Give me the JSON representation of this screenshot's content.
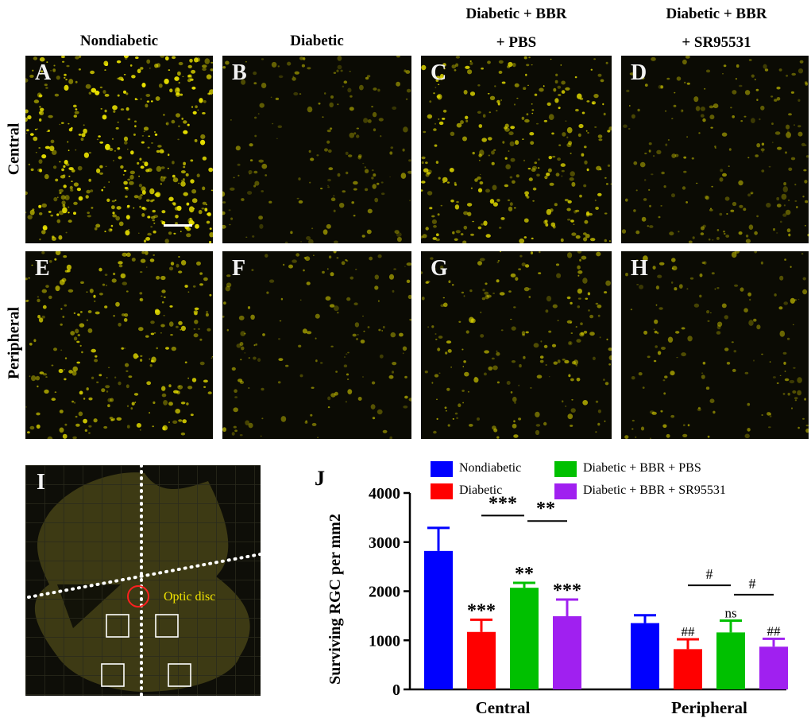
{
  "columns": {
    "c1": [
      "Nondiabetic"
    ],
    "c2": [
      "Diabetic"
    ],
    "c3": [
      "Diabetic + BBR",
      "+ PBS"
    ],
    "c4": [
      "Diabetic + BBR",
      "+ SR95531"
    ]
  },
  "rows": {
    "r1": "Central",
    "r2": "Peripheral"
  },
  "panels": {
    "A": "A",
    "B": "B",
    "C": "C",
    "D": "D",
    "E": "E",
    "F": "F",
    "G": "G",
    "H": "H",
    "I": "I",
    "J": "J"
  },
  "panelI": {
    "label": "Optic disc"
  },
  "colors": {
    "Nondiabetic": "#0000ff",
    "Diabetic": "#ff0000",
    "Diabetic + BBR + PBS": "#00c000",
    "Diabetic + BBR + SR95531": "#a020f0",
    "fluorescence": "#e8e000"
  },
  "chart_data": {
    "type": "bar",
    "ylabel": "Surviving RGC per mm2",
    "categories": [
      "Central",
      "Peripheral"
    ],
    "ylim": [
      0,
      4000
    ],
    "yticks": [
      "0",
      "1000",
      "2000",
      "3000",
      "4000"
    ],
    "series": [
      {
        "name": "Nondiabetic",
        "values": [
          2820,
          1350
        ],
        "errors": [
          470,
          160
        ],
        "labels": [
          "",
          ""
        ]
      },
      {
        "name": "Diabetic",
        "values": [
          1170,
          820
        ],
        "errors": [
          250,
          200
        ],
        "labels": [
          "***",
          "##"
        ]
      },
      {
        "name": "Diabetic + BBR + PBS",
        "values": [
          2070,
          1160
        ],
        "errors": [
          100,
          240
        ],
        "labels": [
          "**",
          "ns"
        ]
      },
      {
        "name": "Diabetic + BBR + SR95531",
        "values": [
          1490,
          870
        ],
        "errors": [
          340,
          160
        ],
        "labels": [
          "***",
          "##"
        ]
      }
    ],
    "brackets": [
      {
        "group": 0,
        "from": 1,
        "to": 2,
        "label": "***"
      },
      {
        "group": 0,
        "from": 2,
        "to": 3,
        "label": "**"
      },
      {
        "group": 1,
        "from": 1,
        "to": 2,
        "label": "#"
      },
      {
        "group": 1,
        "from": 2,
        "to": 3,
        "label": "#"
      }
    ]
  }
}
